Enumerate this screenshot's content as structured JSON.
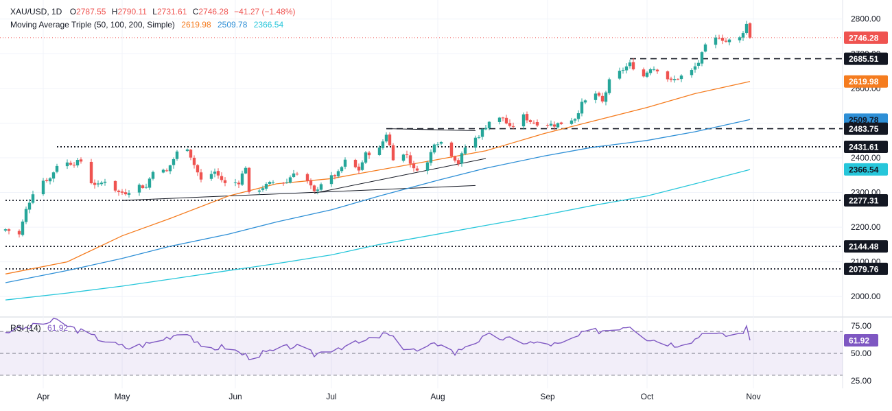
{
  "header": {
    "symbol": "XAU/USD, 1D",
    "open_label": "O",
    "open": "2787.55",
    "high_label": "H",
    "high": "2790.11",
    "low_label": "L",
    "low": "2731.61",
    "close_label": "C",
    "close": "2746.28",
    "change": "−41.27 (−1.48%)",
    "ma_title": "Moving Average Triple (50, 100, 200, Simple)",
    "ma50": "2619.98",
    "ma100": "2509.78",
    "ma200": "2366.54",
    "rsi_title": "RSI (14)",
    "rsi_value": "61.92"
  },
  "colors": {
    "up": "#26a69a",
    "down": "#ef5350",
    "ma50": "#f57c1f",
    "ma100": "#2e8fd6",
    "ma200": "#26c6da",
    "rsi": "#7e57c2",
    "price_tag": "#ef5350"
  },
  "chart_data": [
    {
      "type": "candlestick",
      "title": "XAU/USD, 1D",
      "yaxis_ticks": [
        2000.0,
        2100.0,
        2200.0,
        2300.0,
        2400.0,
        2500.0,
        2600.0,
        2700.0,
        2800.0
      ],
      "ylim": [
        1945,
        2835
      ],
      "xaxis_labels": [
        "Apr",
        "May",
        "Jun",
        "Jul",
        "Aug",
        "Sep",
        "Oct",
        "Nov"
      ],
      "last_price": 2746.28,
      "price_tags": [
        {
          "value": 2746.28,
          "label": "2746.28",
          "kind": "last"
        },
        {
          "value": 2685.51,
          "label": "2685.51",
          "kind": "level"
        },
        {
          "value": 2619.98,
          "label": "2619.98",
          "kind": "ma50"
        },
        {
          "value": 2509.78,
          "label": "2509.78",
          "kind": "ma100"
        },
        {
          "value": 2483.75,
          "label": "2483.75",
          "kind": "level"
        },
        {
          "value": 2431.61,
          "label": "2431.61",
          "kind": "level"
        },
        {
          "value": 2366.54,
          "label": "2366.54",
          "kind": "ma200"
        },
        {
          "value": 2277.31,
          "label": "2277.31",
          "kind": "level"
        },
        {
          "value": 2144.48,
          "label": "2144.48",
          "kind": "level"
        },
        {
          "value": 2079.76,
          "label": "2079.76",
          "kind": "level"
        }
      ],
      "horizontal_levels": [
        {
          "value": 2685.51,
          "style": "dashed",
          "from": "2024-09-26"
        },
        {
          "value": 2483.75,
          "style": "dashed",
          "from": "2024-07-17"
        },
        {
          "value": 2431.61,
          "style": "dotted",
          "from": "2024-04-12"
        },
        {
          "value": 2277.31,
          "style": "dotted",
          "from": "2024-03-28"
        },
        {
          "value": 2144.48,
          "style": "dotted",
          "from": "2024-03-28"
        },
        {
          "value": 2079.76,
          "style": "dotted",
          "from": "2024-03-28"
        }
      ],
      "trendlines": [
        {
          "from": [
            "2024-05-01",
            2277
          ],
          "to": [
            "2024-08-12",
            2320
          ]
        },
        {
          "from": [
            "2024-06-26",
            2298
          ],
          "to": [
            "2024-08-15",
            2398
          ]
        },
        {
          "from": [
            "2024-07-17",
            2484
          ],
          "to": [
            "2024-08-12",
            2478
          ]
        }
      ],
      "ma_series": [
        {
          "name": "50",
          "points": [
            [
              "2024-03-28",
              2065
            ],
            [
              "2024-04-15",
              2100
            ],
            [
              "2024-05-01",
              2175
            ],
            [
              "2024-05-15",
              2225
            ],
            [
              "2024-06-01",
              2290
            ],
            [
              "2024-06-15",
              2325
            ],
            [
              "2024-07-01",
              2340
            ],
            [
              "2024-07-15",
              2365
            ],
            [
              "2024-08-01",
              2395
            ],
            [
              "2024-08-15",
              2420
            ],
            [
              "2024-09-01",
              2470
            ],
            [
              "2024-09-15",
              2505
            ],
            [
              "2024-10-01",
              2545
            ],
            [
              "2024-10-15",
              2585
            ],
            [
              "2024-10-31",
              2620
            ]
          ]
        },
        {
          "name": "100",
          "points": [
            [
              "2024-03-28",
              2040
            ],
            [
              "2024-04-15",
              2075
            ],
            [
              "2024-05-01",
              2110
            ],
            [
              "2024-05-15",
              2145
            ],
            [
              "2024-06-01",
              2180
            ],
            [
              "2024-06-15",
              2215
            ],
            [
              "2024-07-01",
              2250
            ],
            [
              "2024-07-15",
              2290
            ],
            [
              "2024-08-01",
              2335
            ],
            [
              "2024-08-15",
              2370
            ],
            [
              "2024-09-01",
              2405
            ],
            [
              "2024-09-15",
              2430
            ],
            [
              "2024-10-01",
              2450
            ],
            [
              "2024-10-15",
              2475
            ],
            [
              "2024-10-31",
              2510
            ]
          ]
        },
        {
          "name": "200",
          "points": [
            [
              "2024-03-28",
              1990
            ],
            [
              "2024-04-15",
              2010
            ],
            [
              "2024-05-01",
              2030
            ],
            [
              "2024-05-15",
              2050
            ],
            [
              "2024-06-01",
              2075
            ],
            [
              "2024-06-15",
              2095
            ],
            [
              "2024-07-01",
              2120
            ],
            [
              "2024-07-15",
              2150
            ],
            [
              "2024-08-01",
              2180
            ],
            [
              "2024-08-15",
              2205
            ],
            [
              "2024-09-01",
              2235
            ],
            [
              "2024-09-15",
              2262
            ],
            [
              "2024-10-01",
              2290
            ],
            [
              "2024-10-15",
              2325
            ],
            [
              "2024-10-31",
              2366
            ]
          ]
        }
      ],
      "ohlc_anchors": [
        [
          "2024-03-28",
          2194
        ],
        [
          "2024-04-01",
          2178
        ],
        [
          "2024-04-03",
          2250
        ],
        [
          "2024-04-05",
          2300
        ],
        [
          "2024-04-08",
          2335
        ],
        [
          "2024-04-10",
          2340
        ],
        [
          "2024-04-12",
          2380
        ],
        [
          "2024-04-15",
          2385
        ],
        [
          "2024-04-17",
          2385
        ],
        [
          "2024-04-19",
          2390
        ],
        [
          "2024-04-22",
          2330
        ],
        [
          "2024-04-24",
          2320
        ],
        [
          "2024-04-26",
          2335
        ],
        [
          "2024-04-30",
          2300
        ],
        [
          "2024-05-02",
          2300
        ],
        [
          "2024-05-06",
          2320
        ],
        [
          "2024-05-08",
          2315
        ],
        [
          "2024-05-10",
          2365
        ],
        [
          "2024-05-14",
          2360
        ],
        [
          "2024-05-17",
          2415
        ],
        [
          "2024-05-20",
          2430
        ],
        [
          "2024-05-22",
          2380
        ],
        [
          "2024-05-24",
          2335
        ],
        [
          "2024-05-28",
          2360
        ],
        [
          "2024-05-31",
          2325
        ],
        [
          "2024-06-04",
          2330
        ],
        [
          "2024-06-06",
          2375
        ],
        [
          "2024-06-07",
          2295
        ],
        [
          "2024-06-12",
          2320
        ],
        [
          "2024-06-14",
          2330
        ],
        [
          "2024-06-18",
          2330
        ],
        [
          "2024-06-20",
          2360
        ],
        [
          "2024-06-24",
          2330
        ],
        [
          "2024-06-26",
          2300
        ],
        [
          "2024-06-28",
          2327
        ],
        [
          "2024-07-03",
          2355
        ],
        [
          "2024-07-05",
          2390
        ],
        [
          "2024-07-09",
          2365
        ],
        [
          "2024-07-11",
          2410
        ],
        [
          "2024-07-15",
          2425
        ],
        [
          "2024-07-17",
          2470
        ],
        [
          "2024-07-19",
          2400
        ],
        [
          "2024-07-23",
          2410
        ],
        [
          "2024-07-25",
          2365
        ],
        [
          "2024-07-29",
          2385
        ],
        [
          "2024-07-31",
          2445
        ],
        [
          "2024-08-02",
          2445
        ],
        [
          "2024-08-05",
          2410
        ],
        [
          "2024-08-07",
          2385
        ],
        [
          "2024-08-09",
          2430
        ],
        [
          "2024-08-13",
          2465
        ],
        [
          "2024-08-16",
          2505
        ],
        [
          "2024-08-20",
          2515
        ],
        [
          "2024-08-22",
          2485
        ],
        [
          "2024-08-26",
          2520
        ],
        [
          "2024-08-28",
          2505
        ],
        [
          "2024-08-30",
          2500
        ],
        [
          "2024-09-04",
          2495
        ],
        [
          "2024-09-06",
          2500
        ],
        [
          "2024-09-10",
          2515
        ],
        [
          "2024-09-12",
          2555
        ],
        [
          "2024-09-16",
          2585
        ],
        [
          "2024-09-18",
          2560
        ],
        [
          "2024-09-20",
          2620
        ],
        [
          "2024-09-24",
          2655
        ],
        [
          "2024-09-26",
          2670
        ],
        [
          "2024-09-30",
          2635
        ],
        [
          "2024-10-02",
          2660
        ],
        [
          "2024-10-04",
          2655
        ],
        [
          "2024-10-08",
          2620
        ],
        [
          "2024-10-10",
          2630
        ],
        [
          "2024-10-14",
          2650
        ],
        [
          "2024-10-16",
          2675
        ],
        [
          "2024-10-18",
          2720
        ],
        [
          "2024-10-22",
          2750
        ],
        [
          "2024-10-24",
          2735
        ],
        [
          "2024-10-28",
          2745
        ],
        [
          "2024-10-30",
          2785
        ],
        [
          "2024-10-31",
          2746.28
        ]
      ]
    },
    {
      "type": "line",
      "title": "RSI (14)",
      "yaxis_ticks": [
        25.0,
        50.0,
        75.0
      ],
      "ylim": [
        18,
        82
      ],
      "bands": {
        "upper": 70,
        "middle": 50,
        "lower": 30
      },
      "last_value": 61.92,
      "points": [
        [
          "2024-03-28",
          70
        ],
        [
          "2024-04-03",
          73
        ],
        [
          "2024-04-09",
          78
        ],
        [
          "2024-04-12",
          80
        ],
        [
          "2024-04-16",
          74
        ],
        [
          "2024-04-22",
          66
        ],
        [
          "2024-04-30",
          57
        ],
        [
          "2024-05-03",
          55
        ],
        [
          "2024-05-10",
          60
        ],
        [
          "2024-05-17",
          68
        ],
        [
          "2024-05-20",
          70
        ],
        [
          "2024-05-24",
          54
        ],
        [
          "2024-05-31",
          56
        ],
        [
          "2024-06-07",
          47
        ],
        [
          "2024-06-14",
          52
        ],
        [
          "2024-06-20",
          57
        ],
        [
          "2024-06-26",
          49
        ],
        [
          "2024-07-02",
          55
        ],
        [
          "2024-07-10",
          60
        ],
        [
          "2024-07-17",
          68
        ],
        [
          "2024-07-22",
          56
        ],
        [
          "2024-07-26",
          52
        ],
        [
          "2024-08-02",
          60
        ],
        [
          "2024-08-06",
          50
        ],
        [
          "2024-08-09",
          57
        ],
        [
          "2024-08-16",
          66
        ],
        [
          "2024-08-23",
          62
        ],
        [
          "2024-08-30",
          59
        ],
        [
          "2024-09-06",
          58
        ],
        [
          "2024-09-13",
          69
        ],
        [
          "2024-09-20",
          72
        ],
        [
          "2024-09-26",
          76
        ],
        [
          "2024-10-01",
          64
        ],
        [
          "2024-10-09",
          58
        ],
        [
          "2024-10-15",
          63
        ],
        [
          "2024-10-18",
          71
        ],
        [
          "2024-10-23",
          66
        ],
        [
          "2024-10-28",
          68
        ],
        [
          "2024-10-30",
          73
        ],
        [
          "2024-10-31",
          61.92
        ]
      ]
    }
  ]
}
